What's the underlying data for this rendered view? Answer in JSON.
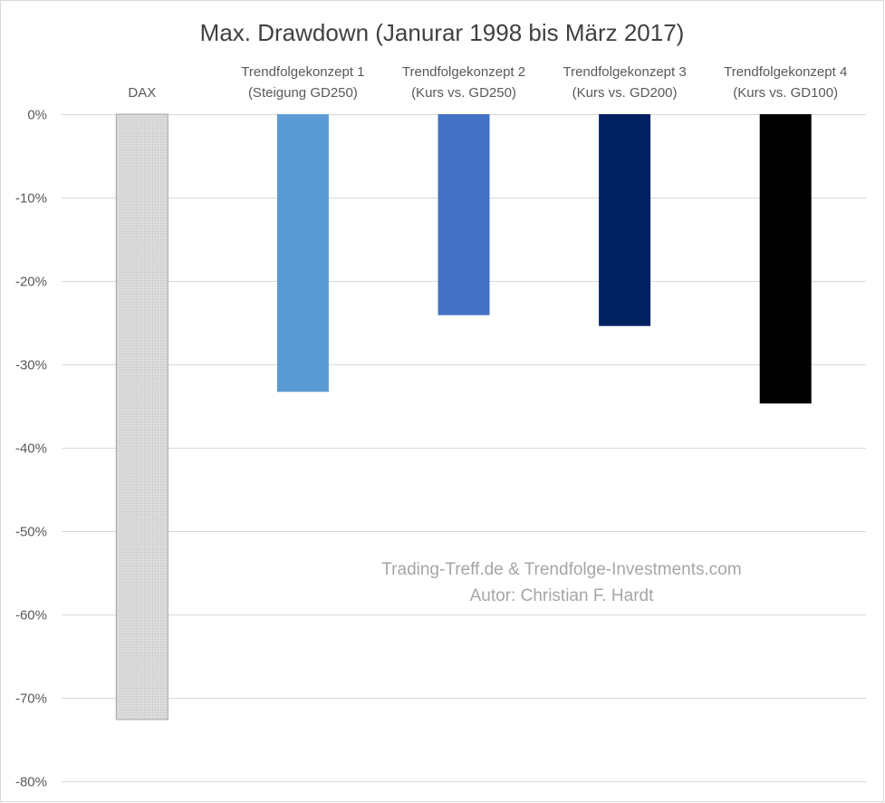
{
  "chart_data": {
    "type": "bar",
    "title": "Max. Drawdown (Janurar 1998 bis März 2017)",
    "categories": [
      [
        "DAX"
      ],
      [
        "Trendfolgekonzept 1",
        "(Steigung GD250)"
      ],
      [
        "Trendfolgekonzept 2",
        "(Kurs vs. GD250)"
      ],
      [
        "Trendfolgekonzept 3",
        "(Kurs vs. GD200)"
      ],
      [
        "Trendfolgekonzept 4",
        "(Kurs vs. GD100)"
      ]
    ],
    "values": [
      -72.6,
      -33.3,
      -24.1,
      -25.4,
      -34.7
    ],
    "colors": [
      "#d9d9d9",
      "#5b9bd5",
      "#4472c4",
      "#002060",
      "#000000"
    ],
    "ylim": [
      -80,
      0
    ],
    "yticks": [
      0,
      -10,
      -20,
      -30,
      -40,
      -50,
      -60,
      -70,
      -80
    ],
    "ytick_labels": [
      "0%",
      "-10%",
      "-20%",
      "-30%",
      "-40%",
      "-50%",
      "-60%",
      "-70%",
      "-80%"
    ],
    "grid": true,
    "xlabel": "",
    "ylabel": "",
    "annotations": [
      "Trading-Treff.de & Trendfolge-Investments.com",
      "Autor: Christian F. Hardt"
    ]
  }
}
